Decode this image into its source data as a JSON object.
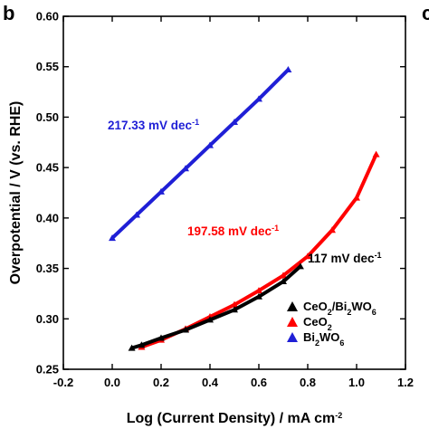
{
  "panel_label": "b",
  "neighbor_panel_label": "c",
  "colors": {
    "CeO2/Bi2WO6": "#000000",
    "CeO2": "#ff0000",
    "Bi2WO6": "#1f1fd6"
  },
  "chart_data": {
    "type": "line",
    "title": "",
    "xlabel": {
      "text": "Log (Current Density) / mA cm",
      "sup": "-2"
    },
    "ylabel": "Overpotential / V  (vs. RHE)",
    "xlim": [
      -0.2,
      1.2
    ],
    "ylim": [
      0.25,
      0.6
    ],
    "xticks": [
      -0.2,
      0.0,
      0.2,
      0.4,
      0.6,
      0.8,
      1.0,
      1.2
    ],
    "xtick_labels": [
      "-0.2",
      "0.0",
      "0.2",
      "0.4",
      "0.6",
      "0.8",
      "1.0",
      "1.2"
    ],
    "yticks": [
      0.25,
      0.3,
      0.35,
      0.4,
      0.45,
      0.5,
      0.55,
      0.6
    ],
    "ytick_labels": [
      "0.25",
      "0.30",
      "0.35",
      "0.40",
      "0.45",
      "0.50",
      "0.55",
      "0.60"
    ],
    "grid": false,
    "legend_position": "bottom-right",
    "series": [
      {
        "name": "CeO2/Bi2WO6",
        "label_parts": [
          [
            "CeO",
            ""
          ],
          [
            "2",
            "sub"
          ],
          [
            "/Bi",
            ""
          ],
          [
            "2",
            "sub"
          ],
          [
            "WO",
            ""
          ],
          [
            "6",
            "sub"
          ]
        ],
        "color": "#000000",
        "points": [
          [
            0.08,
            0.271
          ],
          [
            0.12,
            0.274
          ],
          [
            0.2,
            0.281
          ],
          [
            0.3,
            0.289
          ],
          [
            0.4,
            0.299
          ],
          [
            0.5,
            0.309
          ],
          [
            0.6,
            0.322
          ],
          [
            0.7,
            0.337
          ],
          [
            0.77,
            0.352
          ]
        ]
      },
      {
        "name": "CeO2",
        "label_parts": [
          [
            "CeO",
            ""
          ],
          [
            "2",
            "sub"
          ]
        ],
        "color": "#ff0000",
        "points": [
          [
            0.12,
            0.272
          ],
          [
            0.2,
            0.279
          ],
          [
            0.3,
            0.29
          ],
          [
            0.4,
            0.302
          ],
          [
            0.5,
            0.314
          ],
          [
            0.6,
            0.328
          ],
          [
            0.7,
            0.343
          ],
          [
            0.8,
            0.362
          ],
          [
            0.9,
            0.388
          ],
          [
            1.0,
            0.42
          ],
          [
            1.08,
            0.463
          ]
        ]
      },
      {
        "name": "Bi2WO6",
        "label_parts": [
          [
            "Bi",
            ""
          ],
          [
            "2",
            "sub"
          ],
          [
            "WO",
            ""
          ],
          [
            "6",
            "sub"
          ]
        ],
        "color": "#1f1fd6",
        "points": [
          [
            0.0,
            0.38
          ],
          [
            0.1,
            0.403
          ],
          [
            0.2,
            0.426
          ],
          [
            0.3,
            0.449
          ],
          [
            0.4,
            0.472
          ],
          [
            0.5,
            0.495
          ],
          [
            0.6,
            0.518
          ],
          [
            0.72,
            0.547
          ]
        ]
      }
    ],
    "annotations": [
      {
        "text": "217.33 mV dec",
        "sup": "-1",
        "color": "#1f1fd6",
        "series": "Bi2WO6"
      },
      {
        "text": "197.58 mV dec",
        "sup": "-1",
        "color": "#ff0000",
        "series": "CeO2"
      },
      {
        "text": "117 mV dec",
        "sup": "-1",
        "color": "#000000",
        "series": "CeO2/Bi2WO6"
      }
    ]
  }
}
